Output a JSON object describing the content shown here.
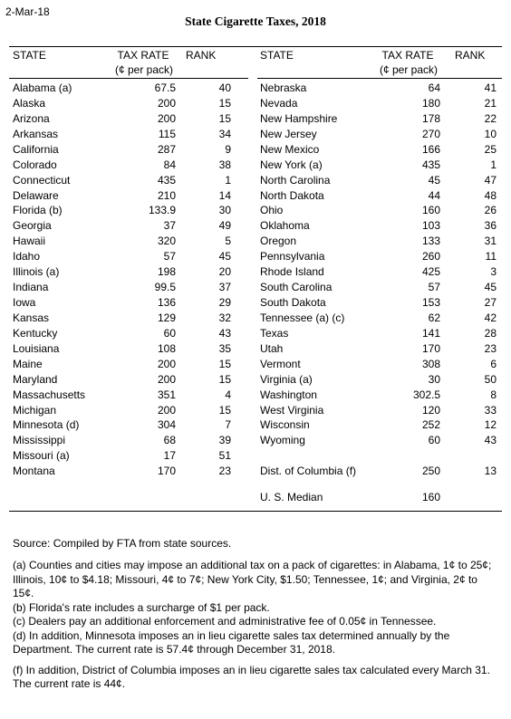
{
  "date": "2-Mar-18",
  "title": "State Cigarette Taxes, 2018",
  "headers": {
    "state": "STATE",
    "tax_rate": "TAX RATE",
    "tax_rate_unit": "(¢ per pack)",
    "rank": "RANK"
  },
  "left_rows": [
    {
      "state": "Alabama (a)",
      "rate": "67.5",
      "rank": "40"
    },
    {
      "state": "Alaska",
      "rate": "200",
      "rank": "15"
    },
    {
      "state": "Arizona",
      "rate": "200",
      "rank": "15"
    },
    {
      "state": "Arkansas",
      "rate": "115",
      "rank": "34"
    },
    {
      "state": "California",
      "rate": "287",
      "rank": "9"
    },
    {
      "state": "Colorado",
      "rate": "84",
      "rank": "38"
    },
    {
      "state": "Connecticut",
      "rate": "435",
      "rank": "1"
    },
    {
      "state": "Delaware",
      "rate": "210",
      "rank": "14"
    },
    {
      "state": "Florida (b)",
      "rate": "133.9",
      "rank": "30"
    },
    {
      "state": "Georgia",
      "rate": "37",
      "rank": "49"
    },
    {
      "state": "Hawaii",
      "rate": "320",
      "rank": "5"
    },
    {
      "state": "Idaho",
      "rate": "57",
      "rank": "45"
    },
    {
      "state": "Illinois (a)",
      "rate": "198",
      "rank": "20"
    },
    {
      "state": "Indiana",
      "rate": "99.5",
      "rank": "37"
    },
    {
      "state": "Iowa",
      "rate": "136",
      "rank": "29"
    },
    {
      "state": "Kansas",
      "rate": "129",
      "rank": "32"
    },
    {
      "state": "Kentucky",
      "rate": "60",
      "rank": "43"
    },
    {
      "state": "Louisiana",
      "rate": "108",
      "rank": "35"
    },
    {
      "state": "Maine",
      "rate": "200",
      "rank": "15"
    },
    {
      "state": "Maryland",
      "rate": "200",
      "rank": "15"
    },
    {
      "state": "Massachusetts",
      "rate": "351",
      "rank": "4"
    },
    {
      "state": "Michigan",
      "rate": "200",
      "rank": "15"
    },
    {
      "state": "Minnesota (d)",
      "rate": "304",
      "rank": "7"
    },
    {
      "state": "Mississippi",
      "rate": "68",
      "rank": "39"
    },
    {
      "state": "Missouri (a)",
      "rate": "17",
      "rank": "51"
    },
    {
      "state": "Montana",
      "rate": "170",
      "rank": "23"
    }
  ],
  "right_rows": [
    {
      "state": "Nebraska",
      "rate": "64",
      "rank": "41"
    },
    {
      "state": "Nevada",
      "rate": "180",
      "rank": "21"
    },
    {
      "state": "New Hampshire",
      "rate": "178",
      "rank": "22"
    },
    {
      "state": "New Jersey",
      "rate": "270",
      "rank": "10"
    },
    {
      "state": "New Mexico",
      "rate": "166",
      "rank": "25"
    },
    {
      "state": "New York (a)",
      "rate": "435",
      "rank": "1"
    },
    {
      "state": "North Carolina",
      "rate": "45",
      "rank": "47"
    },
    {
      "state": "North Dakota",
      "rate": "44",
      "rank": "48"
    },
    {
      "state": "Ohio",
      "rate": "160",
      "rank": "26"
    },
    {
      "state": "Oklahoma",
      "rate": "103",
      "rank": "36"
    },
    {
      "state": "Oregon",
      "rate": "133",
      "rank": "31"
    },
    {
      "state": "Pennsylvania",
      "rate": "260",
      "rank": "11"
    },
    {
      "state": "Rhode Island",
      "rate": "425",
      "rank": "3"
    },
    {
      "state": "South Carolina",
      "rate": "57",
      "rank": "45"
    },
    {
      "state": "South Dakota",
      "rate": "153",
      "rank": "27"
    },
    {
      "state": "Tennessee (a) (c)",
      "rate": "62",
      "rank": "42"
    },
    {
      "state": "Texas",
      "rate": "141",
      "rank": "28"
    },
    {
      "state": "Utah",
      "rate": "170",
      "rank": "23"
    },
    {
      "state": "Vermont",
      "rate": "308",
      "rank": "6"
    },
    {
      "state": "Virginia (a)",
      "rate": "30",
      "rank": "50"
    },
    {
      "state": "Washington",
      "rate": "302.5",
      "rank": "8"
    },
    {
      "state": "West Virginia",
      "rate": "120",
      "rank": "33"
    },
    {
      "state": "Wisconsin",
      "rate": "252",
      "rank": "12"
    },
    {
      "state": "Wyoming",
      "rate": "60",
      "rank": "43"
    },
    {
      "state": "",
      "rate": "",
      "rank": ""
    },
    {
      "state": "Dist. of Columbia (f)",
      "rate": "250",
      "rank": "13"
    }
  ],
  "median": {
    "label": "U. S. Median",
    "rate": "160"
  },
  "source": "Source: Compiled by FTA from state sources.",
  "notes": {
    "a": "(a) Counties and cities may impose an additional tax on a pack of cigarettes:  in Alabama, 1¢ to 25¢; Illinois, 10¢ to $4.18; Missouri, 4¢ to 7¢; New York City, $1.50; Tennessee, 1¢; and Virginia, 2¢ to 15¢.",
    "b": "(b) Florida's rate includes a surcharge of $1 per pack.",
    "c": "(c) Dealers pay an additional enforcement and administrative fee of 0.05¢ in Tennessee.",
    "d": "(d) In addition, Minnesota imposes an in lieu cigarette sales tax determined annually by the Department. The current rate is 57.4¢ through December 31, 2018.",
    "f": "(f) In addition, District of Columbia imposes an in lieu cigarette sales tax calculated every March 31. The current rate is 44¢."
  }
}
